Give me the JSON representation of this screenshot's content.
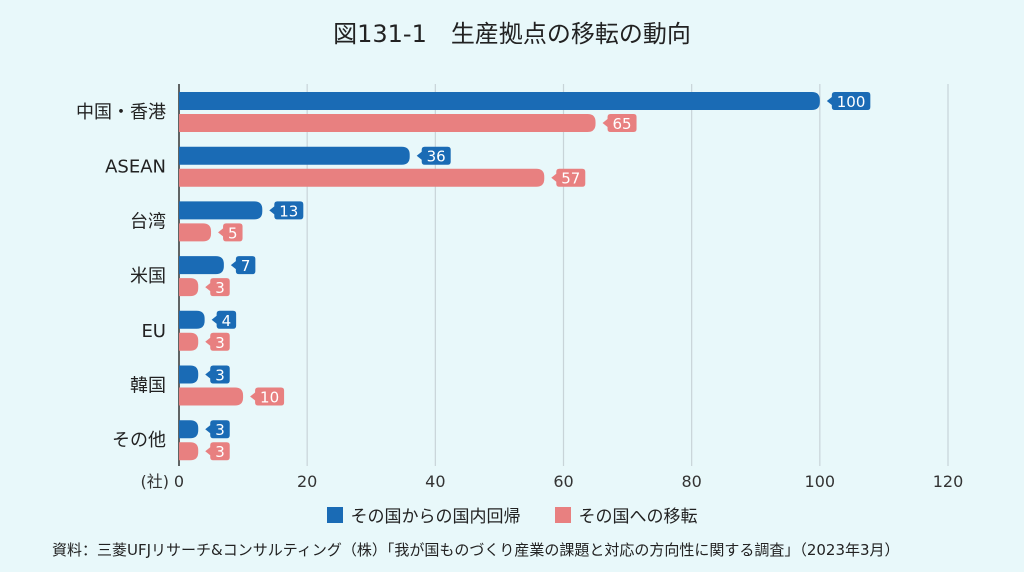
{
  "chart_data": {
    "type": "bar",
    "orientation": "horizontal",
    "title": "図131-1　生産拠点の移転の動向",
    "categories": [
      "中国・香港",
      "ASEAN",
      "台湾",
      "米国",
      "EU",
      "韓国",
      "その他"
    ],
    "series": [
      {
        "name": "その国からの国内回帰",
        "color": "#1a6bb5",
        "values": [
          100,
          36,
          13,
          7,
          4,
          3,
          3
        ]
      },
      {
        "name": "その国への移転",
        "color": "#e88080",
        "values": [
          65,
          57,
          5,
          3,
          3,
          10,
          3
        ]
      }
    ],
    "xunit": "(社)",
    "xlim": [
      0,
      120
    ],
    "xticks": [
      "0",
      "20",
      "40",
      "60",
      "80",
      "100",
      "120"
    ],
    "grid": true,
    "legend_position": "bottom"
  },
  "source": "資料：三菱UFJリサーチ&コンサルティング（株）「我が国ものづくり産業の課題と対応の方向性に関する調査」（2023年3月）"
}
